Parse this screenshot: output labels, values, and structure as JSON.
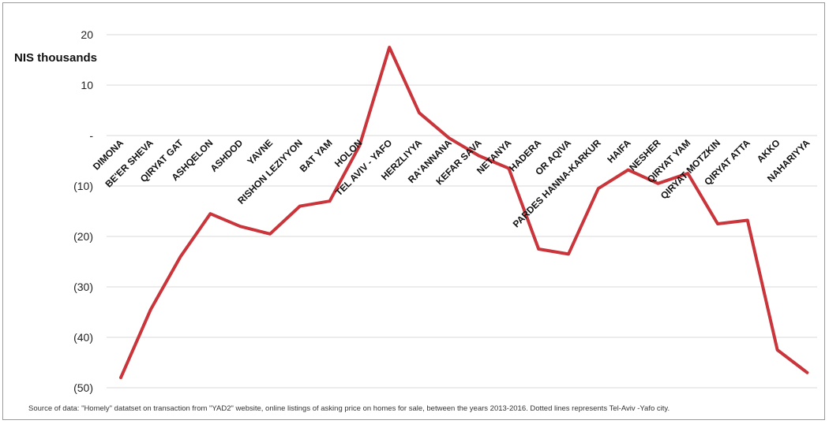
{
  "chart_data": {
    "type": "line",
    "ylabel": "NIS thousands",
    "ylim": [
      -50,
      20
    ],
    "yticks": [
      20,
      10,
      0,
      -10,
      -20,
      -30,
      -40,
      -50
    ],
    "ytick_labels": [
      "20",
      "10",
      "-",
      "(10)",
      "(20)",
      "(30)",
      "(40)",
      "(50)"
    ],
    "grid": "horizontal",
    "line_color": "#c9353a",
    "categories": [
      "DIMONA",
      "BE'ER SHEVA",
      "QIRYAT GAT",
      "ASHQELON",
      "ASHDOD",
      "YAVNE",
      "RISHON LEZIYYON",
      "BAT YAM",
      "HOLON",
      "TEL AVIV - YAFO",
      "HERZLIYYA",
      "RA'ANNANA",
      "KEFAR SAVA",
      "NETANYA",
      "HADERA",
      "OR AQIVA",
      "PARDES HANNA-KARKUR",
      "HAIFA",
      "NESHER",
      "QIRYAT YAM",
      "QIRYAT MOTZKIN",
      "QIRYAT ATTA",
      "AKKO",
      "NAHARIYYA"
    ],
    "values": [
      -48,
      -34.5,
      -24,
      -15.5,
      -18,
      -19.5,
      -14,
      -13,
      -2,
      17.5,
      4.5,
      -0.5,
      -4,
      -6.5,
      -22.5,
      -23.5,
      -10.5,
      -6.8,
      -9.5,
      -7.5,
      -17.5,
      -16.8,
      -42.5,
      -47
    ]
  },
  "source_note": "Source of data: \"Homely\" datatset on transaction from \"YAD2\" website, online listings of asking price on homes for sale, between the years 2013-2016. Dotted lines represents Tel-Aviv -Yafo city."
}
